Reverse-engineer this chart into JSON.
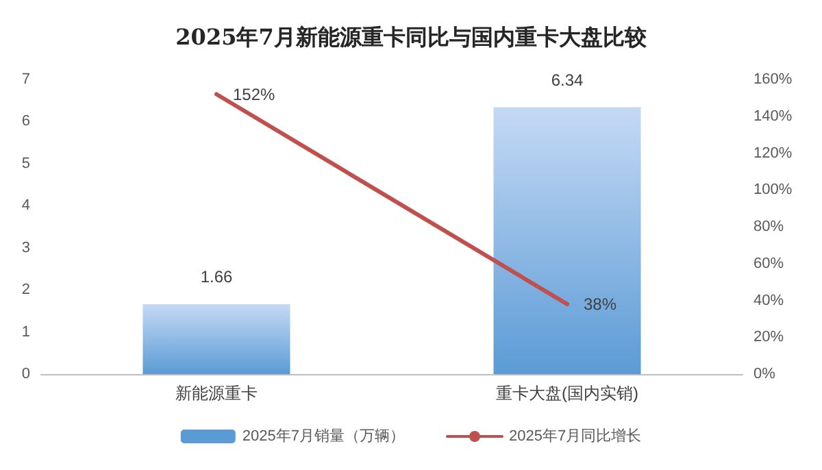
{
  "chart_data": {
    "type": "bar",
    "title": "2025年7月新能源重卡同比与国内重卡大盘比较",
    "categories": [
      "新能源重卡",
      "重卡大盘(国内实销)"
    ],
    "series": [
      {
        "name": "2025年7月销量（万辆）",
        "color": "#5b9bd5",
        "values": [
          1.66,
          6.34
        ],
        "value_labels": [
          "1.66",
          "6.34"
        ]
      },
      {
        "name": "2025年7月同比增长",
        "type": "line",
        "axis": "y2",
        "color": "#c0504d",
        "values": [
          152,
          38
        ],
        "value_labels": [
          "152%",
          "38%"
        ]
      }
    ],
    "ylim": [
      0,
      7
    ],
    "yticks": [
      0,
      1,
      2,
      3,
      4,
      5,
      6,
      7
    ],
    "y2lim": [
      0,
      160
    ],
    "y2ticks": [
      {
        "value": 0,
        "label": "0%"
      },
      {
        "value": 20,
        "label": "20%"
      },
      {
        "value": 40,
        "label": "40%"
      },
      {
        "value": 60,
        "label": "60%"
      },
      {
        "value": 80,
        "label": "80%"
      },
      {
        "value": 100,
        "label": "100%"
      },
      {
        "value": 120,
        "label": "120%"
      },
      {
        "value": 140,
        "label": "140%"
      },
      {
        "value": 160,
        "label": "160%"
      }
    ],
    "legend": "bottom",
    "grid": false,
    "marker": "none"
  }
}
